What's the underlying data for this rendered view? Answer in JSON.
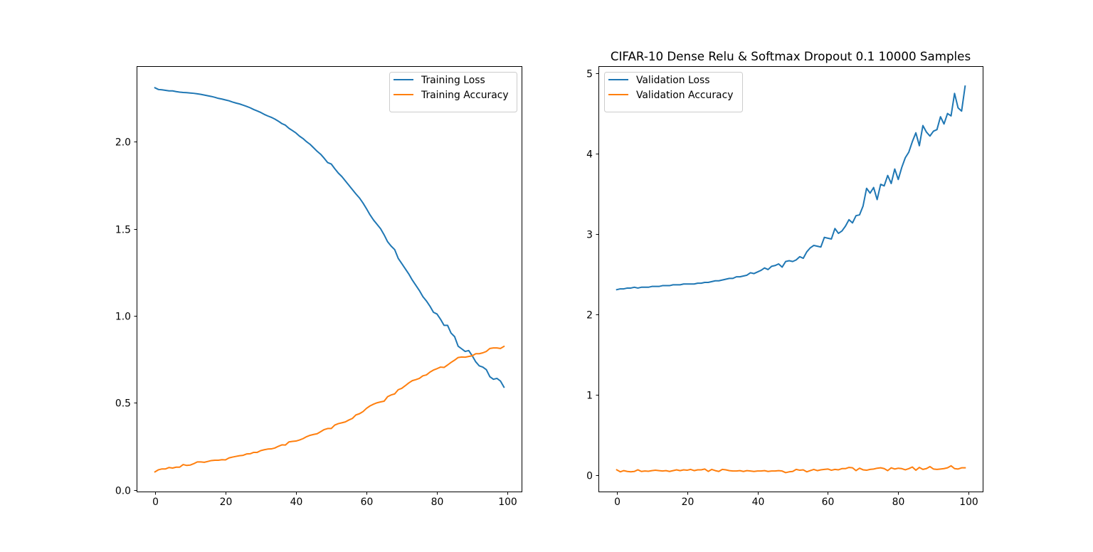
{
  "chart_data": [
    {
      "type": "line",
      "title": "",
      "xlabel": "",
      "ylabel": "",
      "xlim": [
        -5,
        104
      ],
      "ylim": [
        -0.01,
        2.43
      ],
      "xticks": [
        0,
        20,
        40,
        60,
        80,
        100
      ],
      "yticks": [
        0.0,
        0.5,
        1.0,
        1.5,
        2.0
      ],
      "xtick_labels": [
        "0",
        "20",
        "40",
        "60",
        "80",
        "100"
      ],
      "ytick_labels": [
        "0.0",
        "0.5",
        "1.0",
        "1.5",
        "2.0"
      ],
      "legend": "top-right",
      "grid": false,
      "series": [
        {
          "name": "Training Loss",
          "color": "#1f77b4",
          "x": [
            0,
            1,
            2,
            3,
            4,
            5,
            6,
            7,
            8,
            9,
            10,
            11,
            12,
            13,
            14,
            15,
            16,
            17,
            18,
            19,
            20,
            21,
            22,
            23,
            24,
            25,
            26,
            27,
            28,
            29,
            30,
            31,
            32,
            33,
            34,
            35,
            36,
            37,
            38,
            39,
            40,
            41,
            42,
            43,
            44,
            45,
            46,
            47,
            48,
            49,
            50,
            51,
            52,
            53,
            54,
            55,
            56,
            57,
            58,
            59,
            60,
            61,
            62,
            63,
            64,
            65,
            66,
            67,
            68,
            69,
            70,
            71,
            72,
            73,
            74,
            75,
            76,
            77,
            78,
            79,
            80,
            81,
            82,
            83,
            84,
            85,
            86,
            87,
            88,
            89,
            90,
            91,
            92,
            93,
            94,
            95,
            96,
            97,
            98,
            99
          ],
          "values": [
            2.31,
            2.3,
            2.298,
            2.295,
            2.292,
            2.292,
            2.288,
            2.285,
            2.283,
            2.282,
            2.28,
            2.278,
            2.275,
            2.272,
            2.268,
            2.264,
            2.26,
            2.255,
            2.249,
            2.245,
            2.24,
            2.235,
            2.228,
            2.222,
            2.217,
            2.21,
            2.203,
            2.195,
            2.185,
            2.177,
            2.168,
            2.157,
            2.148,
            2.14,
            2.13,
            2.118,
            2.104,
            2.095,
            2.077,
            2.064,
            2.05,
            2.032,
            2.018,
            2,
            1.985,
            1.965,
            1.945,
            1.928,
            1.905,
            1.88,
            1.872,
            1.845,
            1.82,
            1.8,
            1.775,
            1.75,
            1.725,
            1.7,
            1.677,
            1.648,
            1.615,
            1.58,
            1.55,
            1.525,
            1.5,
            1.465,
            1.425,
            1.4,
            1.38,
            1.33,
            1.3,
            1.27,
            1.24,
            1.205,
            1.175,
            1.145,
            1.11,
            1.085,
            1.055,
            1.02,
            1.01,
            0.98,
            0.945,
            0.945,
            0.9,
            0.88,
            0.825,
            0.81,
            0.795,
            0.8,
            0.77,
            0.735,
            0.712,
            0.705,
            0.69,
            0.65,
            0.635,
            0.64,
            0.625,
            0.59
          ]
        },
        {
          "name": "Training Accuracy",
          "color": "#ff7f0e",
          "x": [
            0,
            1,
            2,
            3,
            4,
            5,
            6,
            7,
            8,
            9,
            10,
            11,
            12,
            13,
            14,
            15,
            16,
            17,
            18,
            19,
            20,
            21,
            22,
            23,
            24,
            25,
            26,
            27,
            28,
            29,
            30,
            31,
            32,
            33,
            34,
            35,
            36,
            37,
            38,
            39,
            40,
            41,
            42,
            43,
            44,
            45,
            46,
            47,
            48,
            49,
            50,
            51,
            52,
            53,
            54,
            55,
            56,
            57,
            58,
            59,
            60,
            61,
            62,
            63,
            64,
            65,
            66,
            67,
            68,
            69,
            70,
            71,
            72,
            73,
            74,
            75,
            76,
            77,
            78,
            79,
            80,
            81,
            82,
            83,
            84,
            85,
            86,
            87,
            88,
            89,
            90,
            91,
            92,
            93,
            94,
            95,
            96,
            97,
            98,
            99
          ],
          "values": [
            0.103,
            0.115,
            0.12,
            0.12,
            0.128,
            0.125,
            0.13,
            0.13,
            0.145,
            0.14,
            0.142,
            0.15,
            0.16,
            0.16,
            0.158,
            0.163,
            0.168,
            0.17,
            0.17,
            0.173,
            0.172,
            0.183,
            0.188,
            0.192,
            0.196,
            0.198,
            0.206,
            0.207,
            0.215,
            0.215,
            0.225,
            0.23,
            0.234,
            0.235,
            0.24,
            0.25,
            0.258,
            0.257,
            0.275,
            0.278,
            0.28,
            0.286,
            0.294,
            0.305,
            0.313,
            0.318,
            0.322,
            0.334,
            0.346,
            0.352,
            0.352,
            0.372,
            0.38,
            0.385,
            0.39,
            0.401,
            0.41,
            0.43,
            0.437,
            0.449,
            0.468,
            0.482,
            0.492,
            0.5,
            0.505,
            0.509,
            0.535,
            0.545,
            0.551,
            0.575,
            0.583,
            0.598,
            0.614,
            0.627,
            0.633,
            0.64,
            0.655,
            0.66,
            0.676,
            0.688,
            0.696,
            0.705,
            0.703,
            0.717,
            0.732,
            0.745,
            0.76,
            0.763,
            0.762,
            0.766,
            0.77,
            0.782,
            0.782,
            0.787,
            0.795,
            0.812,
            0.815,
            0.815,
            0.812,
            0.824
          ]
        }
      ]
    },
    {
      "type": "line",
      "title": "CIFAR-10 Dense Relu & Softmax Dropout 0.1 10000 Samples",
      "xlabel": "",
      "ylabel": "",
      "xlim": [
        -5,
        104
      ],
      "ylim": [
        -0.2,
        5.08
      ],
      "xticks": [
        0,
        20,
        40,
        60,
        80,
        100
      ],
      "yticks": [
        0,
        1,
        2,
        3,
        4,
        5
      ],
      "xtick_labels": [
        "0",
        "20",
        "40",
        "60",
        "80",
        "100"
      ],
      "ytick_labels": [
        "0",
        "1",
        "2",
        "3",
        "4",
        "5"
      ],
      "legend": "top-left",
      "grid": false,
      "series": [
        {
          "name": "Validation Loss",
          "color": "#1f77b4",
          "x": [
            0,
            1,
            2,
            3,
            4,
            5,
            6,
            7,
            8,
            9,
            10,
            11,
            12,
            13,
            14,
            15,
            16,
            17,
            18,
            19,
            20,
            21,
            22,
            23,
            24,
            25,
            26,
            27,
            28,
            29,
            30,
            31,
            32,
            33,
            34,
            35,
            36,
            37,
            38,
            39,
            40,
            41,
            42,
            43,
            44,
            45,
            46,
            47,
            48,
            49,
            50,
            51,
            52,
            53,
            54,
            55,
            56,
            57,
            58,
            59,
            60,
            61,
            62,
            63,
            64,
            65,
            66,
            67,
            68,
            69,
            70,
            71,
            72,
            73,
            74,
            75,
            76,
            77,
            78,
            79,
            80,
            81,
            82,
            83,
            84,
            85,
            86,
            87,
            88,
            89,
            90,
            91,
            92,
            93,
            94,
            95,
            96,
            97,
            98,
            99
          ],
          "values": [
            2.31,
            2.32,
            2.32,
            2.33,
            2.33,
            2.34,
            2.33,
            2.34,
            2.34,
            2.34,
            2.35,
            2.35,
            2.35,
            2.36,
            2.36,
            2.36,
            2.37,
            2.37,
            2.37,
            2.38,
            2.38,
            2.38,
            2.38,
            2.39,
            2.39,
            2.4,
            2.4,
            2.41,
            2.42,
            2.42,
            2.43,
            2.44,
            2.45,
            2.45,
            2.47,
            2.47,
            2.48,
            2.49,
            2.52,
            2.51,
            2.53,
            2.55,
            2.58,
            2.56,
            2.6,
            2.61,
            2.63,
            2.59,
            2.66,
            2.67,
            2.66,
            2.68,
            2.72,
            2.7,
            2.78,
            2.83,
            2.86,
            2.85,
            2.84,
            2.96,
            2.95,
            2.94,
            3.07,
            3.01,
            3.04,
            3.1,
            3.18,
            3.14,
            3.23,
            3.24,
            3.35,
            3.57,
            3.51,
            3.58,
            3.43,
            3.62,
            3.6,
            3.73,
            3.63,
            3.81,
            3.68,
            3.83,
            3.95,
            4.02,
            4.15,
            4.26,
            4.1,
            4.35,
            4.27,
            4.22,
            4.28,
            4.3,
            4.46,
            4.37,
            4.5,
            4.47,
            4.75,
            4.57,
            4.53,
            4.84
          ]
        },
        {
          "name": "Validation Accuracy",
          "color": "#ff7f0e",
          "x": [
            0,
            1,
            2,
            3,
            4,
            5,
            6,
            7,
            8,
            9,
            10,
            11,
            12,
            13,
            14,
            15,
            16,
            17,
            18,
            19,
            20,
            21,
            22,
            23,
            24,
            25,
            26,
            27,
            28,
            29,
            30,
            31,
            32,
            33,
            34,
            35,
            36,
            37,
            38,
            39,
            40,
            41,
            42,
            43,
            44,
            45,
            46,
            47,
            48,
            49,
            50,
            51,
            52,
            53,
            54,
            55,
            56,
            57,
            58,
            59,
            60,
            61,
            62,
            63,
            64,
            65,
            66,
            67,
            68,
            69,
            70,
            71,
            72,
            73,
            74,
            75,
            76,
            77,
            78,
            79,
            80,
            81,
            82,
            83,
            84,
            85,
            86,
            87,
            88,
            89,
            90,
            91,
            92,
            93,
            94,
            95,
            96,
            97,
            98,
            99
          ],
          "values": [
            0.07,
            0.045,
            0.06,
            0.05,
            0.045,
            0.05,
            0.07,
            0.05,
            0.055,
            0.052,
            0.06,
            0.065,
            0.06,
            0.055,
            0.06,
            0.05,
            0.06,
            0.07,
            0.06,
            0.07,
            0.065,
            0.075,
            0.06,
            0.07,
            0.07,
            0.08,
            0.05,
            0.075,
            0.06,
            0.05,
            0.075,
            0.07,
            0.06,
            0.055,
            0.055,
            0.06,
            0.05,
            0.06,
            0.055,
            0.05,
            0.055,
            0.055,
            0.06,
            0.05,
            0.055,
            0.055,
            0.06,
            0.055,
            0.035,
            0.045,
            0.05,
            0.075,
            0.065,
            0.07,
            0.045,
            0.06,
            0.075,
            0.06,
            0.07,
            0.075,
            0.08,
            0.065,
            0.075,
            0.07,
            0.085,
            0.085,
            0.1,
            0.095,
            0.06,
            0.09,
            0.07,
            0.065,
            0.075,
            0.08,
            0.09,
            0.095,
            0.085,
            0.06,
            0.095,
            0.08,
            0.09,
            0.085,
            0.07,
            0.085,
            0.105,
            0.065,
            0.1,
            0.075,
            0.085,
            0.11,
            0.08,
            0.075,
            0.08,
            0.085,
            0.095,
            0.12,
            0.085,
            0.08,
            0.095,
            0.095
          ]
        }
      ]
    }
  ]
}
